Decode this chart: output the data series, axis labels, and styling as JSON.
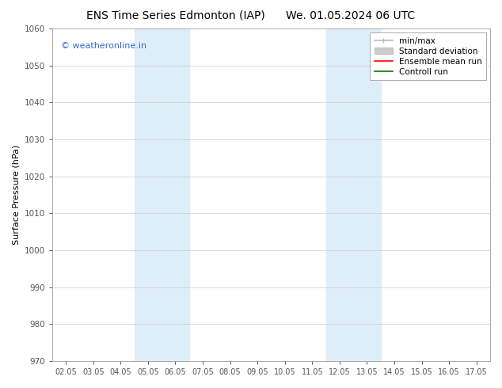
{
  "title_left": "ENS Time Series Edmonton (IAP)",
  "title_right": "We. 01.05.2024 06 UTC",
  "ylabel": "Surface Pressure (hPa)",
  "ylim": [
    970,
    1060
  ],
  "yticks": [
    970,
    980,
    990,
    1000,
    1010,
    1020,
    1030,
    1040,
    1050,
    1060
  ],
  "xtick_labels": [
    "02.05",
    "03.05",
    "04.05",
    "05.05",
    "06.05",
    "07.05",
    "08.05",
    "09.05",
    "10.05",
    "11.05",
    "12.05",
    "13.05",
    "14.05",
    "15.05",
    "16.05",
    "17.05"
  ],
  "xtick_positions": [
    0,
    1,
    2,
    3,
    4,
    5,
    6,
    7,
    8,
    9,
    10,
    11,
    12,
    13,
    14,
    15
  ],
  "xlim": [
    -0.5,
    15.5
  ],
  "shaded_regions": [
    {
      "xmin": 2.5,
      "xmax": 4.5,
      "color": "#ddeef8"
    },
    {
      "xmin": 9.5,
      "xmax": 11.5,
      "color": "#ddeef8"
    }
  ],
  "watermark_text": "© weatheronline.in",
  "watermark_color": "#3366cc",
  "watermark_fontsize": 8,
  "legend_entries": [
    {
      "label": "min/max",
      "color": "#bbbbbb",
      "linestyle": "-",
      "linewidth": 1.2,
      "type": "line_tick"
    },
    {
      "label": "Standard deviation",
      "color": "#cccccc",
      "linestyle": "-",
      "linewidth": 8,
      "type": "bar"
    },
    {
      "label": "Ensemble mean run",
      "color": "red",
      "linestyle": "-",
      "linewidth": 1.2,
      "type": "line"
    },
    {
      "label": "Controll run",
      "color": "green",
      "linestyle": "-",
      "linewidth": 1.2,
      "type": "line"
    }
  ],
  "background_color": "#ffffff",
  "grid_color": "#cccccc",
  "title_fontsize": 10,
  "ylabel_fontsize": 8,
  "xtick_fontsize": 7,
  "ytick_fontsize": 7.5,
  "legend_fontsize": 7.5
}
